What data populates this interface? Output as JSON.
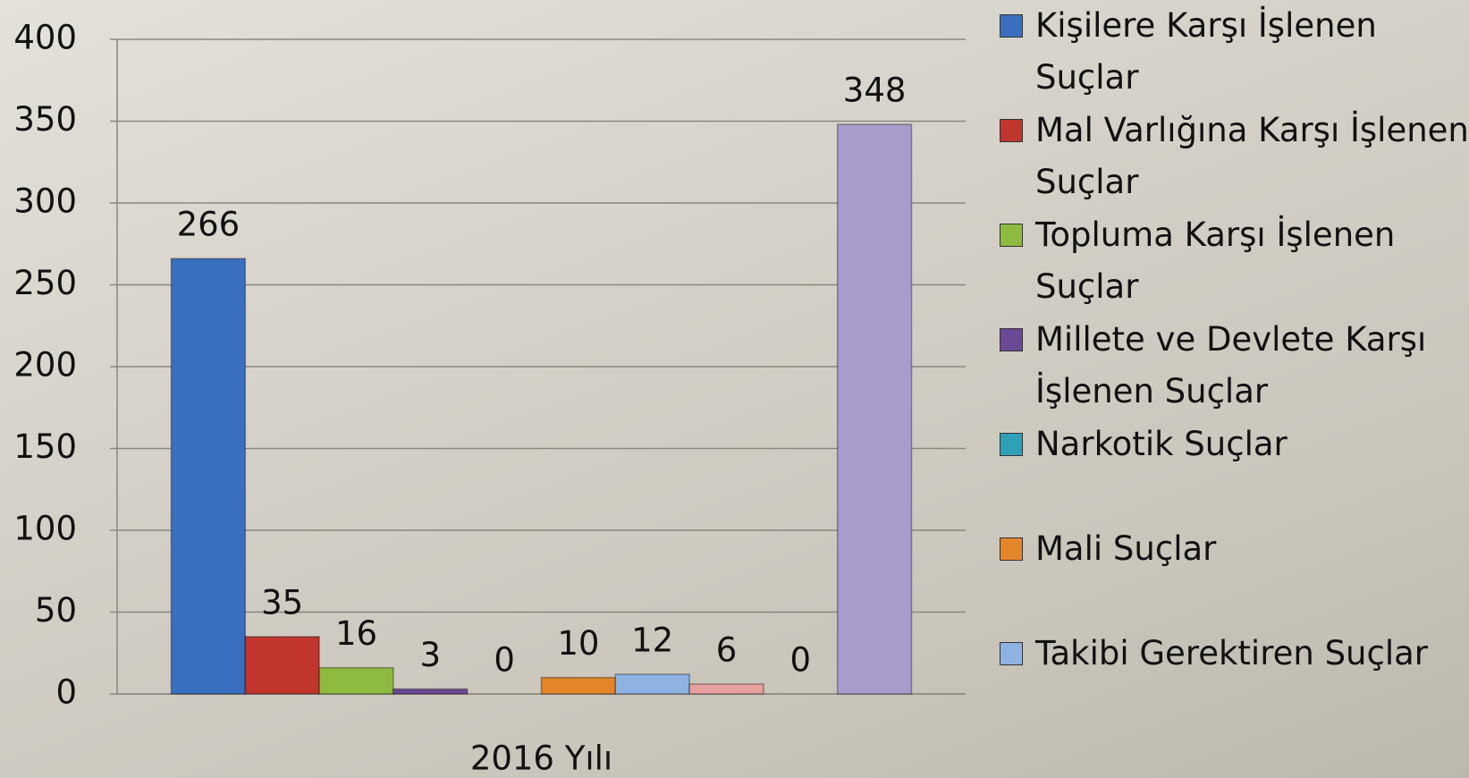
{
  "chart_data": {
    "type": "bar",
    "categories": [
      "2016 Yılı"
    ],
    "series": [
      {
        "name": "Kişilere Karşı İşlenen Suçlar",
        "color": "#3a6fc0",
        "values": [
          266
        ]
      },
      {
        "name": "Mal Varlığına Karşı İşlenen Suçlar",
        "color": "#c0362f",
        "values": [
          35
        ]
      },
      {
        "name": "Topluma Karşı İşlenen Suçlar",
        "color": "#8dba3f",
        "values": [
          16
        ]
      },
      {
        "name": "Millete ve Devlete Karşı İşlenen Suçlar",
        "color": "#6a4a96",
        "values": [
          3
        ]
      },
      {
        "name": "Narkotik Suçlar",
        "color": "#2ea0b8",
        "values": [
          0
        ]
      },
      {
        "name": "Mali Suçlar",
        "color": "#e5852a",
        "values": [
          10
        ]
      },
      {
        "name": "Takibi Gerektiren Suçlar",
        "color": "#8eb3e3",
        "values": [
          12
        ]
      },
      {
        "color": "#e6a0a0",
        "values": [
          6
        ]
      },
      {
        "color": "#c3d69b",
        "values": [
          0
        ]
      },
      {
        "color": "#a89ccc",
        "values": [
          348
        ]
      }
    ],
    "ylim": [
      0,
      400
    ],
    "yticks": [
      0,
      50,
      100,
      150,
      200,
      250,
      300,
      350,
      400
    ],
    "grid": true
  }
}
